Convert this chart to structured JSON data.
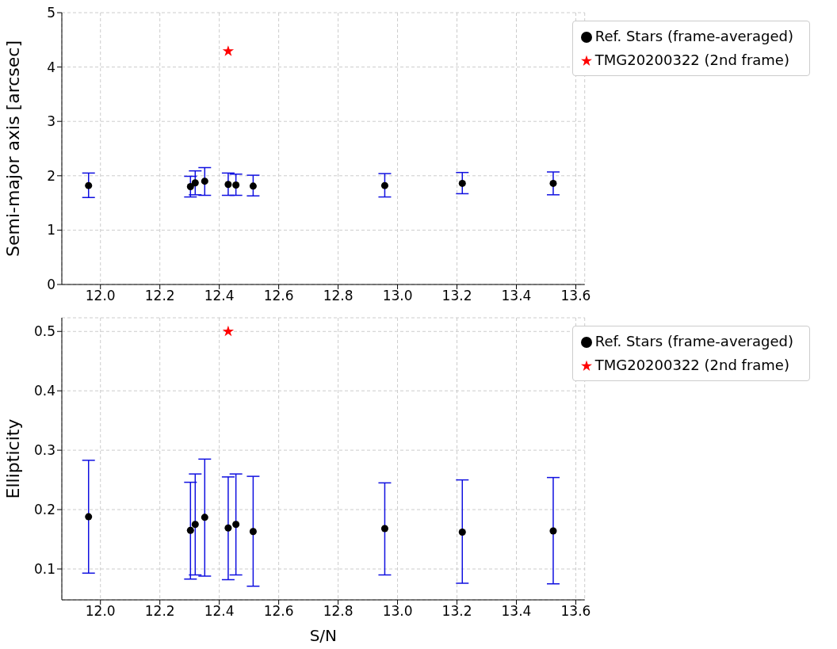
{
  "chart_data": [
    {
      "type": "scatter",
      "ylabel": "Semi-major axis [arcsec]",
      "xlim": [
        11.87,
        13.63
      ],
      "xticks": [
        {
          "value": 12.0,
          "label": "12.0"
        },
        {
          "value": 12.2,
          "label": "12.2"
        },
        {
          "value": 12.4,
          "label": "12.4"
        },
        {
          "value": 12.6,
          "label": "12.6"
        },
        {
          "value": 12.8,
          "label": "12.8"
        },
        {
          "value": 13.0,
          "label": "13.0"
        },
        {
          "value": 13.2,
          "label": "13.2"
        },
        {
          "value": 13.4,
          "label": "13.4"
        },
        {
          "value": 13.6,
          "label": "13.6"
        }
      ],
      "ylim": [
        0,
        5
      ],
      "yticks": [
        0,
        1,
        2,
        3,
        4,
        5
      ],
      "grid": true,
      "legend": "top right",
      "series": [
        {
          "name": "TMG20200322 (2nd frame)",
          "color": "#ff0000",
          "marker": "star",
          "x": [
            12.43
          ],
          "values": [
            4.29
          ]
        },
        {
          "name": "Ref. Stars (frame-averaged)",
          "color": "#000000",
          "marker": "circle",
          "x": [
            11.96,
            12.303,
            12.319,
            12.351,
            12.43,
            12.456,
            12.514,
            12.957,
            13.218,
            13.524
          ],
          "values": [
            1.82,
            1.8,
            1.87,
            1.9,
            1.84,
            1.83,
            1.81,
            1.82,
            1.86,
            1.86
          ],
          "errors": [
            [
              1.6,
              2.05
            ],
            [
              1.61,
              1.99
            ],
            [
              1.65,
              2.09
            ],
            [
              1.64,
              2.15
            ],
            [
              1.64,
              2.05
            ],
            [
              1.64,
              2.03
            ],
            [
              1.63,
              2.01
            ],
            [
              1.61,
              2.04
            ],
            [
              1.67,
              2.06
            ],
            [
              1.65,
              2.07
            ]
          ]
        }
      ]
    },
    {
      "type": "scatter",
      "xlabel": "S/N",
      "ylabel": "Ellipticity",
      "xlim": [
        11.87,
        13.63
      ],
      "xticks": [
        {
          "value": 12.0,
          "label": "12.0"
        },
        {
          "value": 12.2,
          "label": "12.2"
        },
        {
          "value": 12.4,
          "label": "12.4"
        },
        {
          "value": 12.6,
          "label": "12.6"
        },
        {
          "value": 12.8,
          "label": "12.8"
        },
        {
          "value": 13.0,
          "label": "13.0"
        },
        {
          "value": 13.2,
          "label": "13.2"
        },
        {
          "value": 13.4,
          "label": "13.4"
        },
        {
          "value": 13.6,
          "label": "13.6"
        }
      ],
      "ylim": [
        0.048,
        0.523
      ],
      "yticks": [
        0.1,
        0.2,
        0.3,
        0.4,
        0.5
      ],
      "grid": true,
      "legend": "top right",
      "series": [
        {
          "name": "TMG20200322 (2nd frame)",
          "color": "#ff0000",
          "marker": "star",
          "x": [
            12.43
          ],
          "values": [
            0.5
          ]
        },
        {
          "name": "Ref. Stars (frame-averaged)",
          "color": "#000000",
          "marker": "circle",
          "x": [
            11.96,
            12.303,
            12.319,
            12.351,
            12.43,
            12.456,
            12.514,
            12.957,
            13.218,
            13.524
          ],
          "values": [
            0.188,
            0.165,
            0.175,
            0.187,
            0.169,
            0.175,
            0.163,
            0.168,
            0.162,
            0.164
          ],
          "errors": [
            [
              0.093,
              0.283
            ],
            [
              0.083,
              0.246
            ],
            [
              0.09,
              0.26
            ],
            [
              0.088,
              0.285
            ],
            [
              0.082,
              0.255
            ],
            [
              0.09,
              0.26
            ],
            [
              0.071,
              0.256
            ],
            [
              0.09,
              0.245
            ],
            [
              0.076,
              0.25
            ],
            [
              0.075,
              0.254
            ]
          ]
        }
      ]
    }
  ]
}
